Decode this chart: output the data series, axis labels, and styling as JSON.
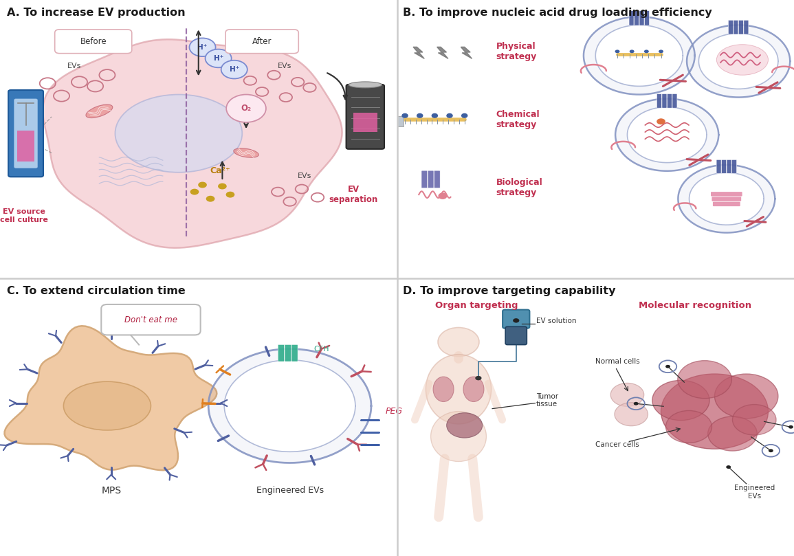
{
  "panel_A_title": "A. To increase EV production",
  "panel_B_title": "B. To improve nucleic acid drug loading efficiency",
  "panel_C_title": "C. To extend circulation time",
  "panel_D_title": "D. To improve targeting capability",
  "bg_color": "#ffffff",
  "panel_A_bg": "#fceaec",
  "panel_C_bg": "#fceaec",
  "text_dark": "#1a1a1a",
  "text_red": "#c0392b",
  "label_before": "Before",
  "label_after": "After",
  "physical_strategy": "Physical\nstrategy",
  "chemical_strategy": "Chemical\nstrategy",
  "biological_strategy": "Biological\nstrategy",
  "dont_eat": "Don't eat me",
  "label_MPS": "MPS",
  "label_engineered": "Engineered EVs",
  "label_CFH": "CFH",
  "label_PEG": "PEG",
  "organ_targeting": "Organ targeting",
  "molecular_recognition": "Molecular recognition",
  "label_EV_solution": "EV solution",
  "label_tumor": "Tumor\ntissue",
  "label_normal": "Normal cells",
  "label_cancer": "Cancer cells",
  "label_eng_EVs": "Engineered\nEVs",
  "label_EV_source": "EV source\ncell culture",
  "label_EV_separation": "EV\nseparation"
}
